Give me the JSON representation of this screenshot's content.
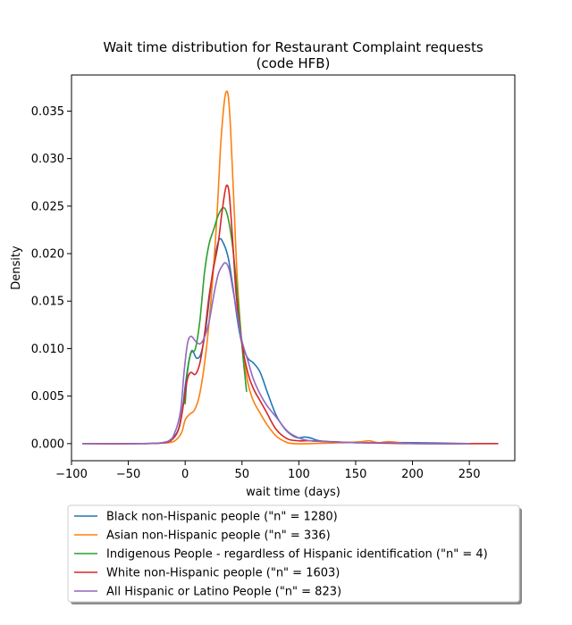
{
  "chart_data": {
    "type": "line",
    "title": "Wait time distribution  for Restaurant Complaint requests",
    "subtitle": "(code HFB)",
    "xlabel": "wait time (days)",
    "ylabel": "Density",
    "xlim": [
      -100,
      290
    ],
    "ylim": [
      -0.0018,
      0.0388
    ],
    "x_ticks": [
      -100,
      -50,
      0,
      50,
      100,
      150,
      200,
      250
    ],
    "x_tick_labels": [
      "−100",
      "−50",
      "0",
      "50",
      "100",
      "150",
      "200",
      "250"
    ],
    "y_ticks": [
      0.0,
      0.005,
      0.01,
      0.015,
      0.02,
      0.025,
      0.03,
      0.035
    ],
    "y_tick_labels": [
      "0.000",
      "0.005",
      "0.010",
      "0.015",
      "0.020",
      "0.025",
      "0.030",
      "0.035"
    ],
    "grid": false,
    "legend_position": "below",
    "series": [
      {
        "name": "Black non-Hispanic people (\"n\" = 1280)",
        "color": "#1f77b4",
        "points": [
          [
            -90,
            0
          ],
          [
            -40,
            0
          ],
          [
            -20,
            0.0001
          ],
          [
            -12,
            0.0005
          ],
          [
            -6,
            0.0015
          ],
          [
            -2,
            0.004
          ],
          [
            0,
            0.006
          ],
          [
            3,
            0.0085
          ],
          [
            6,
            0.0098
          ],
          [
            10,
            0.009
          ],
          [
            14,
            0.0095
          ],
          [
            18,
            0.012
          ],
          [
            22,
            0.016
          ],
          [
            26,
            0.0195
          ],
          [
            30,
            0.0215
          ],
          [
            34,
            0.021
          ],
          [
            38,
            0.0195
          ],
          [
            42,
            0.0165
          ],
          [
            46,
            0.013
          ],
          [
            50,
            0.0105
          ],
          [
            55,
            0.009
          ],
          [
            60,
            0.0085
          ],
          [
            66,
            0.0075
          ],
          [
            72,
            0.0055
          ],
          [
            80,
            0.003
          ],
          [
            88,
            0.0015
          ],
          [
            95,
            0.0008
          ],
          [
            100,
            0.0006
          ],
          [
            105,
            0.0007
          ],
          [
            110,
            0.0006
          ],
          [
            118,
            0.0003
          ],
          [
            130,
            0.0002
          ],
          [
            150,
            0.0001
          ],
          [
            165,
            0.0001
          ],
          [
            200,
            0.0001
          ],
          [
            250,
            0
          ]
        ]
      },
      {
        "name": "Asian non-Hispanic people (\"n\" = 336)",
        "color": "#ff7f0e",
        "points": [
          [
            -90,
            0
          ],
          [
            -40,
            0
          ],
          [
            -15,
            0.0001
          ],
          [
            -8,
            0.0004
          ],
          [
            -3,
            0.0012
          ],
          [
            0,
            0.0025
          ],
          [
            4,
            0.0031
          ],
          [
            8,
            0.0035
          ],
          [
            12,
            0.0048
          ],
          [
            16,
            0.0075
          ],
          [
            20,
            0.0115
          ],
          [
            24,
            0.017
          ],
          [
            28,
            0.024
          ],
          [
            31,
            0.031
          ],
          [
            34,
            0.0355
          ],
          [
            36,
            0.037
          ],
          [
            38,
            0.0365
          ],
          [
            40,
            0.033
          ],
          [
            43,
            0.025
          ],
          [
            46,
            0.017
          ],
          [
            50,
            0.0105
          ],
          [
            55,
            0.0065
          ],
          [
            60,
            0.0045
          ],
          [
            66,
            0.0032
          ],
          [
            72,
            0.002
          ],
          [
            80,
            0.0008
          ],
          [
            88,
            0.0002
          ],
          [
            95,
            0
          ],
          [
            110,
            0
          ],
          [
            140,
            0.0001
          ],
          [
            155,
            0.0002
          ],
          [
            162,
            0.0003
          ],
          [
            170,
            0.0001
          ],
          [
            180,
            0.0002
          ],
          [
            200,
            0
          ],
          [
            250,
            0
          ]
        ]
      },
      {
        "name": "Indigenous People - regardless of Hispanic identification (\"n\" = 4)",
        "color": "#2ca02c",
        "points": [
          [
            0,
            0.0042
          ],
          [
            2,
            0.0075
          ],
          [
            5,
            0.0095
          ],
          [
            9,
            0.01
          ],
          [
            13,
            0.013
          ],
          [
            17,
            0.018
          ],
          [
            21,
            0.021
          ],
          [
            25,
            0.0225
          ],
          [
            29,
            0.024
          ],
          [
            33,
            0.0248
          ],
          [
            36,
            0.0245
          ],
          [
            39,
            0.023
          ],
          [
            42,
            0.0205
          ],
          [
            45,
            0.017
          ],
          [
            48,
            0.013
          ],
          [
            51,
            0.009
          ],
          [
            54,
            0.0055
          ]
        ]
      },
      {
        "name": "White non-Hispanic people (\"n\" = 1603)",
        "color": "#d62728",
        "points": [
          [
            -90,
            0
          ],
          [
            -40,
            0
          ],
          [
            -18,
            0.0001
          ],
          [
            -10,
            0.0006
          ],
          [
            -5,
            0.0018
          ],
          [
            -1,
            0.0045
          ],
          [
            2,
            0.0068
          ],
          [
            5,
            0.0075
          ],
          [
            9,
            0.0073
          ],
          [
            13,
            0.0085
          ],
          [
            17,
            0.0115
          ],
          [
            21,
            0.0155
          ],
          [
            25,
            0.0185
          ],
          [
            29,
            0.021
          ],
          [
            32,
            0.024
          ],
          [
            35,
            0.0265
          ],
          [
            37,
            0.0272
          ],
          [
            39,
            0.026
          ],
          [
            42,
            0.021
          ],
          [
            45,
            0.0155
          ],
          [
            50,
            0.0105
          ],
          [
            55,
            0.0075
          ],
          [
            60,
            0.0058
          ],
          [
            66,
            0.0045
          ],
          [
            72,
            0.0032
          ],
          [
            80,
            0.0015
          ],
          [
            90,
            0.0005
          ],
          [
            100,
            0.0003
          ],
          [
            110,
            0.0003
          ],
          [
            125,
            0.0002
          ],
          [
            150,
            0.0001
          ],
          [
            200,
            0
          ],
          [
            275,
            0
          ]
        ]
      },
      {
        "name": "All Hispanic or Latino People (\"n\" = 823)",
        "color": "#9467bd",
        "points": [
          [
            -90,
            0
          ],
          [
            -40,
            0
          ],
          [
            -16,
            0.0002
          ],
          [
            -9,
            0.0012
          ],
          [
            -4,
            0.0035
          ],
          [
            -1,
            0.0075
          ],
          [
            2,
            0.0105
          ],
          [
            5,
            0.0113
          ],
          [
            9,
            0.0108
          ],
          [
            13,
            0.0105
          ],
          [
            17,
            0.0112
          ],
          [
            21,
            0.0128
          ],
          [
            25,
            0.0155
          ],
          [
            29,
            0.0178
          ],
          [
            33,
            0.0188
          ],
          [
            36,
            0.019
          ],
          [
            39,
            0.0182
          ],
          [
            42,
            0.0162
          ],
          [
            46,
            0.0135
          ],
          [
            50,
            0.0108
          ],
          [
            55,
            0.0088
          ],
          [
            60,
            0.0068
          ],
          [
            66,
            0.0052
          ],
          [
            72,
            0.004
          ],
          [
            80,
            0.0028
          ],
          [
            90,
            0.0013
          ],
          [
            100,
            0.0006
          ],
          [
            110,
            0.0003
          ],
          [
            125,
            0.0002
          ],
          [
            150,
            0.0001
          ],
          [
            180,
            0.0001
          ],
          [
            210,
            0
          ],
          [
            250,
            0
          ]
        ]
      }
    ]
  }
}
